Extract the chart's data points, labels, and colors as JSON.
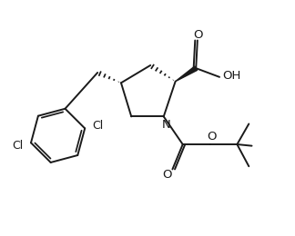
{
  "bg_color": "#ffffff",
  "line_color": "#1a1a1a",
  "line_width": 1.4,
  "figsize": [
    3.24,
    2.6
  ],
  "dpi": 100,
  "xlim": [
    0,
    10
  ],
  "ylim": [
    0,
    8
  ]
}
